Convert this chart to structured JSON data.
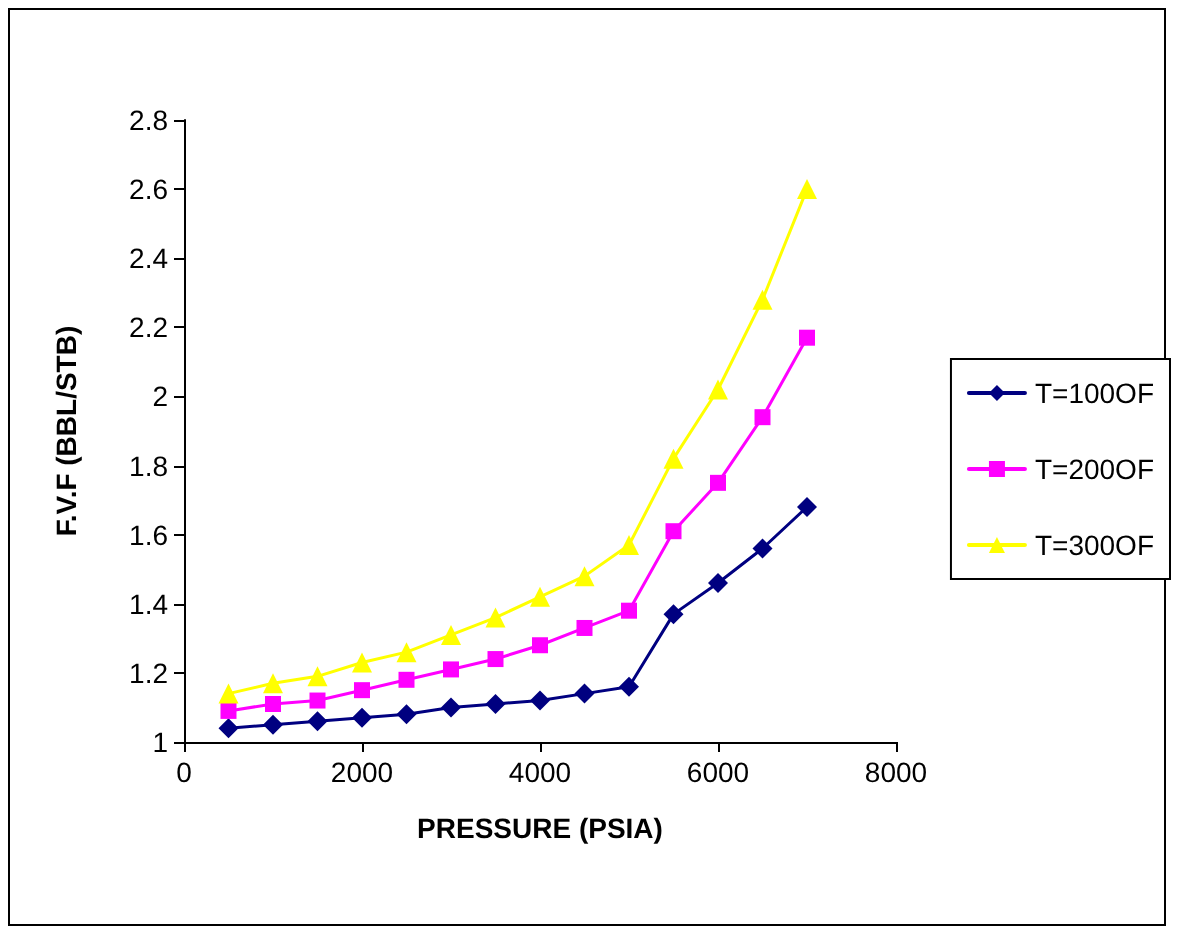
{
  "chart_data": {
    "type": "line",
    "xlabel": "PRESSURE (PSIA)",
    "ylabel": "F.V.F (BBL/STB)",
    "x": [
      500,
      1000,
      1500,
      2000,
      2500,
      3000,
      3500,
      4000,
      4500,
      5000,
      5500,
      6000,
      6500,
      7000
    ],
    "series": [
      {
        "name": "T=100OF",
        "color": "#000080",
        "marker": "diamond",
        "values": [
          1.04,
          1.05,
          1.06,
          1.07,
          1.08,
          1.1,
          1.11,
          1.12,
          1.14,
          1.16,
          1.37,
          1.46,
          1.56,
          1.68
        ]
      },
      {
        "name": "T=200OF",
        "color": "#ff00ff",
        "marker": "square",
        "values": [
          1.09,
          1.11,
          1.12,
          1.15,
          1.18,
          1.21,
          1.24,
          1.28,
          1.33,
          1.38,
          1.61,
          1.75,
          1.94,
          2.17
        ]
      },
      {
        "name": "T=300OF",
        "color": "#ffff00",
        "marker": "triangle",
        "values": [
          1.14,
          1.17,
          1.19,
          1.23,
          1.26,
          1.31,
          1.36,
          1.42,
          1.48,
          1.57,
          1.82,
          2.02,
          2.28,
          2.6
        ]
      }
    ],
    "xlim": [
      0,
      8000
    ],
    "xticks": [
      0,
      2000,
      4000,
      6000,
      8000
    ],
    "ylim": [
      1,
      2.8
    ],
    "yticks": [
      1,
      1.2,
      1.4,
      1.6,
      1.8,
      2,
      2.2,
      2.4,
      2.6,
      2.8
    ],
    "grid": false,
    "legend": "right",
    "line_style": "solid"
  }
}
